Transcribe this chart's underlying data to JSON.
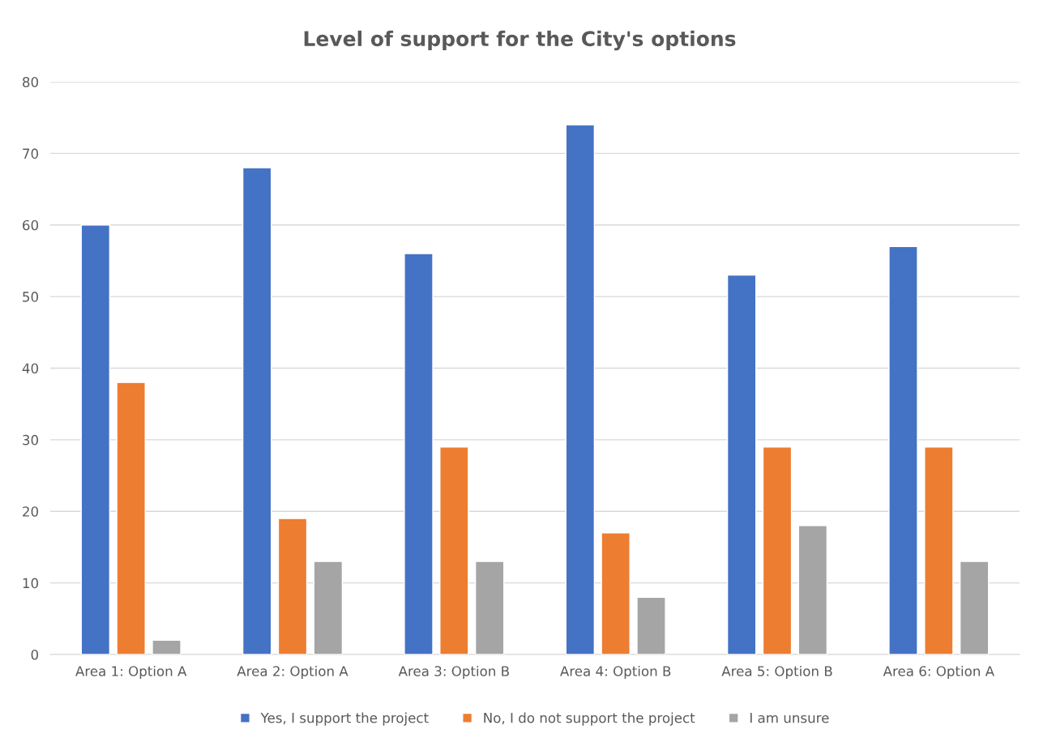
{
  "chart_data": {
    "type": "bar",
    "title": "Level of support for the City's options",
    "categories": [
      "Area 1: Option A",
      "Area 2: Option A",
      "Area 3: Option B",
      "Area 4: Option B",
      "Area 5: Option B",
      "Area 6: Option A"
    ],
    "series": [
      {
        "name": "Yes, I support the project",
        "color": "#4472c4",
        "values": [
          60,
          68,
          56,
          74,
          53,
          57
        ]
      },
      {
        "name": "No, I do not support the project",
        "color": "#ed7d31",
        "values": [
          38,
          19,
          29,
          17,
          29,
          29
        ]
      },
      {
        "name": "I am unsure",
        "color": "#a5a5a5",
        "values": [
          2,
          13,
          13,
          8,
          18,
          13
        ]
      }
    ],
    "ylim": [
      0,
      80
    ],
    "yticks": [
      0,
      10,
      20,
      30,
      40,
      50,
      60,
      70,
      80
    ],
    "grid": "y",
    "legend": "bottom"
  }
}
